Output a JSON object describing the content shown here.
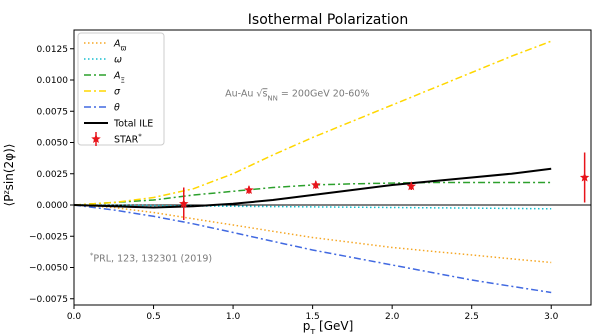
{
  "chart_data": {
    "type": "line",
    "title": "Isothermal Polarization",
    "xlabel": "p_T [GeV]",
    "ylabel": "⟨P^z sin(2φ)⟩",
    "xlim": [
      0.0,
      3.25
    ],
    "ylim": [
      -0.008,
      0.014
    ],
    "xticks": [
      0.0,
      0.5,
      1.0,
      1.5,
      2.0,
      2.5,
      3.0
    ],
    "xtick_labels": [
      "0.0",
      "0.5",
      "1.0",
      "1.5",
      "2.0",
      "2.5",
      "3.0"
    ],
    "yticks": [
      -0.0075,
      -0.005,
      -0.0025,
      0.0,
      0.0025,
      0.005,
      0.0075,
      0.01,
      0.0125
    ],
    "ytick_labels": [
      "−0.0075",
      "−0.0050",
      "−0.0025",
      "0.0000",
      "0.0025",
      "0.0050",
      "0.0075",
      "0.0100",
      "0.0125"
    ],
    "grid": false,
    "zero_line": true,
    "legend_position": "top-left",
    "series": [
      {
        "name": "A_ϖ",
        "legend_label": "A",
        "legend_sub": "ϖ",
        "color": "#f5a623",
        "dash": "1.5,2.5",
        "x": [
          0.0,
          0.25,
          0.5,
          0.75,
          1.0,
          1.25,
          1.5,
          1.75,
          2.0,
          2.25,
          2.5,
          2.75,
          3.0
        ],
        "y": [
          0.0,
          -0.0002,
          -0.0006,
          -0.0011,
          -0.0016,
          -0.0021,
          -0.0026,
          -0.003,
          -0.0034,
          -0.0037,
          -0.004,
          -0.0043,
          -0.0046
        ]
      },
      {
        "name": "ω",
        "legend_label": "ω",
        "legend_sub": "",
        "color": "#17becf",
        "dash": "1.5,2.5",
        "x": [
          0.0,
          0.5,
          1.0,
          1.5,
          2.0,
          2.5,
          3.0
        ],
        "y": [
          0.0,
          -5e-05,
          -0.0001,
          -0.00015,
          -0.0002,
          -0.00025,
          -0.0003
        ]
      },
      {
        "name": "A_Ξ",
        "legend_label": "A",
        "legend_sub": "Ξ",
        "color": "#2ca02c",
        "dash": "7,3,2,3",
        "x": [
          0.0,
          0.25,
          0.5,
          0.75,
          1.0,
          1.25,
          1.5,
          1.75,
          2.0,
          2.25,
          2.5,
          2.75,
          3.0
        ],
        "y": [
          0.0,
          0.0002,
          0.0004,
          0.0008,
          0.0011,
          0.0014,
          0.0016,
          0.0017,
          0.00175,
          0.0018,
          0.0018,
          0.0018,
          0.0018
        ]
      },
      {
        "name": "σ",
        "legend_label": "σ",
        "legend_sub": "",
        "color": "#ffd700",
        "dash": "7,3,2,3",
        "x": [
          0.0,
          0.25,
          0.5,
          0.75,
          1.0,
          1.25,
          1.5,
          1.75,
          2.0,
          2.25,
          2.5,
          2.75,
          3.0
        ],
        "y": [
          0.0,
          0.0002,
          0.0006,
          0.0013,
          0.0025,
          0.004,
          0.0054,
          0.0067,
          0.008,
          0.0093,
          0.0106,
          0.0119,
          0.0131
        ]
      },
      {
        "name": "θ",
        "legend_label": "θ",
        "legend_sub": "",
        "color": "#4169e1",
        "dash": "7,3,2,3",
        "x": [
          0.0,
          0.25,
          0.5,
          0.75,
          1.0,
          1.25,
          1.5,
          1.75,
          2.0,
          2.25,
          2.5,
          2.75,
          3.0
        ],
        "y": [
          0.0,
          -0.0004,
          -0.0009,
          -0.0015,
          -0.0022,
          -0.0029,
          -0.0036,
          -0.0042,
          -0.0048,
          -0.0054,
          -0.006,
          -0.0065,
          -0.007
        ]
      },
      {
        "name": "Total ILE",
        "legend_label": "Total ILE",
        "legend_sub": "",
        "color": "#000000",
        "dash": "",
        "x": [
          0.0,
          0.25,
          0.5,
          0.75,
          1.0,
          1.25,
          1.5,
          1.75,
          2.0,
          2.25,
          2.5,
          2.75,
          3.0
        ],
        "y": [
          0.0,
          -0.0001,
          -0.0002,
          -0.0001,
          0.0001,
          0.0004,
          0.0008,
          0.0012,
          0.0016,
          0.0019,
          0.0022,
          0.0025,
          0.0029
        ]
      }
    ],
    "points": {
      "name": "STAR*",
      "legend_label": "STAR",
      "legend_sup": "*",
      "color": "#e8141b",
      "data": [
        {
          "x": 0.69,
          "y": 0.0001,
          "err": 0.0013
        },
        {
          "x": 1.1,
          "y": 0.0012,
          "err": 0.0003
        },
        {
          "x": 1.52,
          "y": 0.0016,
          "err": 0.0003
        },
        {
          "x": 2.12,
          "y": 0.0015,
          "err": 0.0003
        },
        {
          "x": 3.21,
          "y": 0.0022,
          "err": 0.002
        }
      ]
    },
    "annotations": [
      {
        "text": "Au-Au √s_NN = 200GeV 20-60%",
        "parts": [
          "Au-Au ",
          "√",
          "s",
          "NN",
          " = 200GeV 20-60%"
        ],
        "x": 0.95,
        "y": 0.0087
      },
      {
        "text": "*PRL, 123, 132301 (2019)",
        "parts": [
          "*",
          "PRL, 123, 132301 (2019)"
        ],
        "x": 0.1,
        "y": -0.0045
      }
    ]
  }
}
